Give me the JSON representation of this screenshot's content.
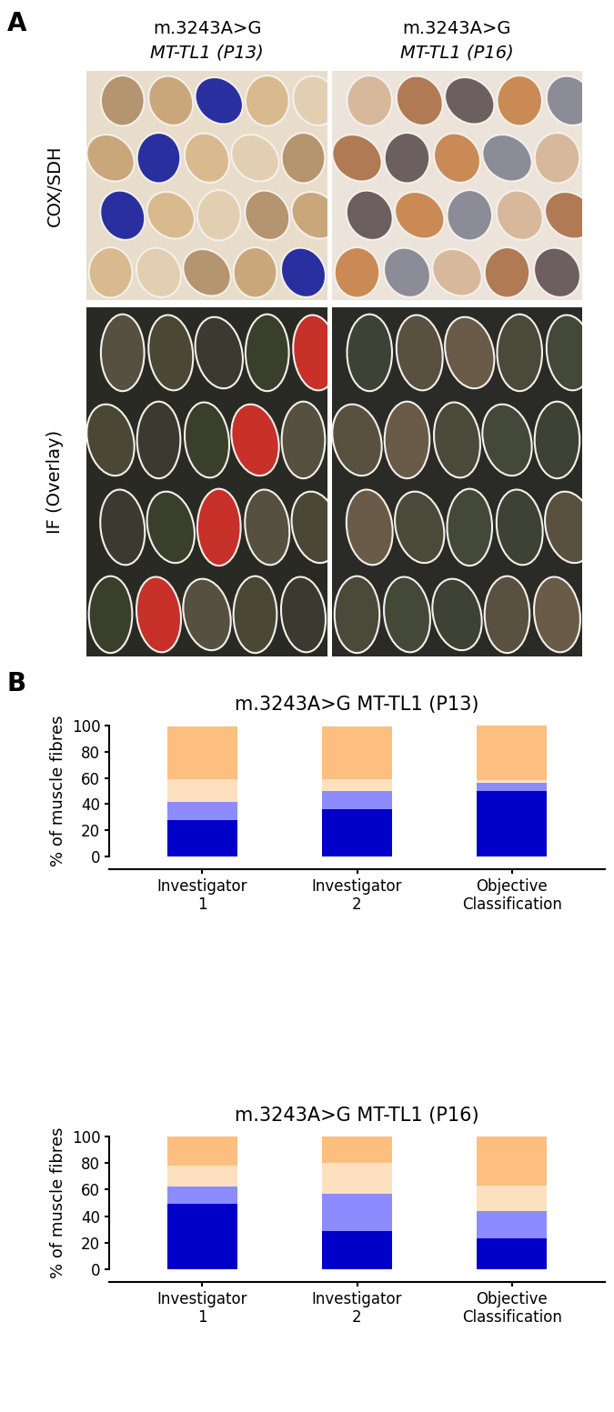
{
  "panel_a": {
    "label": "A",
    "columns": [
      [
        "m.3243A>G",
        "MT-TL1 (P13)"
      ],
      [
        "m.3243A>G",
        "MT-TL1 (P16)"
      ]
    ],
    "rows": [
      "COX/SDH",
      "IF (Overlay)"
    ]
  },
  "panel_b": {
    "label": "B"
  },
  "chart_data": [
    {
      "type": "bar",
      "stacked": true,
      "title": "m.3243A>G MT-TL1 (P13)",
      "y_label": "% of muscle fibres",
      "categories": [
        "Investigator\n1",
        "Investigator\n2",
        "Objective\nClassification"
      ],
      "ylim": [
        0,
        100
      ],
      "yticks": [
        0,
        20,
        40,
        60,
        80,
        100
      ],
      "series": [
        {
          "color": "#0000c8",
          "values": [
            28,
            36,
            50
          ]
        },
        {
          "color": "#8c8cff",
          "values": [
            14,
            14,
            6
          ]
        },
        {
          "color": "#fde0c0",
          "values": [
            17,
            9,
            2
          ]
        },
        {
          "color": "#fdbf80",
          "values": [
            40,
            40,
            42
          ]
        }
      ]
    },
    {
      "type": "bar",
      "stacked": true,
      "title": "m.3243A>G MT-TL1 (P16)",
      "y_label": "% of muscle fibres",
      "categories": [
        "Investigator\n1",
        "Investigator\n2",
        "Objective\nClassification"
      ],
      "ylim": [
        0,
        100
      ],
      "yticks": [
        0,
        20,
        40,
        60,
        80,
        100
      ],
      "series": [
        {
          "color": "#0000c8",
          "values": [
            49,
            29,
            23
          ]
        },
        {
          "color": "#8c8cff",
          "values": [
            13,
            28,
            21
          ]
        },
        {
          "color": "#fde0c0",
          "values": [
            16,
            23,
            19
          ]
        },
        {
          "color": "#fdbf80",
          "values": [
            22,
            20,
            37
          ]
        }
      ]
    }
  ]
}
